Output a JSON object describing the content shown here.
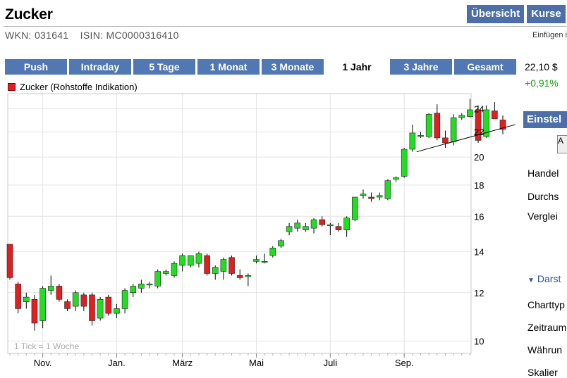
{
  "page": {
    "title": "Zucker",
    "wkn": "WKN: 031641",
    "isin": "ISIN: MC0000316410",
    "insert_link": "Einfügen i"
  },
  "topnav": [
    "Übersicht",
    "Kurse"
  ],
  "range_tabs": {
    "items": [
      "Push",
      "Intraday",
      "5 Tage",
      "1 Monat",
      "3 Monate",
      "1 Jahr",
      "3 Jahre",
      "Gesamt"
    ],
    "active": "1 Jahr"
  },
  "quote": {
    "price": "22,10 $",
    "change": "+0,91%"
  },
  "sidebar": {
    "settings_title": "Einstel",
    "button_stub": "A",
    "items": [
      "Handel",
      "Durchs",
      "Verglei"
    ],
    "section_title": "Darst",
    "section_items": [
      "Charttyp",
      "Zeitraum",
      "Währun",
      "Skalier"
    ]
  },
  "colors": {
    "up": "#22dd22",
    "down": "#e02020",
    "nav": "#4d6fa9",
    "range_tab": "#5278b4",
    "positive": "#1aa31a"
  },
  "chart_data": {
    "type": "candlestick",
    "legend": "Zucker (Rohstoffe Indikation)",
    "note": "1 Tick = 1 Woche",
    "y_ticks": [
      10,
      12,
      14,
      16,
      18,
      20,
      22,
      24
    ],
    "ylim": [
      9.7,
      25.2
    ],
    "x_ticks": [
      {
        "label": "Nov.",
        "week": 4
      },
      {
        "label": "Jan.",
        "week": 13
      },
      {
        "label": "März",
        "week": 21
      },
      {
        "label": "Mai",
        "week": 30
      },
      {
        "label": "Juli",
        "week": 39
      },
      {
        "label": "Sep.",
        "week": 48
      }
    ],
    "x_range": [
      0,
      56
    ],
    "candles": [
      {
        "o": 14.4,
        "h": 14.4,
        "l": 12.6,
        "c": 12.7
      },
      {
        "o": 12.4,
        "h": 12.5,
        "l": 11.1,
        "c": 11.3
      },
      {
        "o": 11.6,
        "h": 12.0,
        "l": 11.3,
        "c": 11.8
      },
      {
        "o": 11.7,
        "h": 11.9,
        "l": 10.4,
        "c": 10.7
      },
      {
        "o": 10.8,
        "h": 12.3,
        "l": 10.5,
        "c": 12.2
      },
      {
        "o": 12.1,
        "h": 12.8,
        "l": 11.9,
        "c": 12.3
      },
      {
        "o": 12.3,
        "h": 12.4,
        "l": 11.6,
        "c": 11.7
      },
      {
        "o": 11.6,
        "h": 11.7,
        "l": 11.2,
        "c": 11.3
      },
      {
        "o": 11.4,
        "h": 12.1,
        "l": 11.2,
        "c": 12.0
      },
      {
        "o": 11.9,
        "h": 12.0,
        "l": 11.2,
        "c": 11.4
      },
      {
        "o": 11.9,
        "h": 12.0,
        "l": 10.6,
        "c": 10.8
      },
      {
        "o": 10.9,
        "h": 11.8,
        "l": 10.8,
        "c": 11.7
      },
      {
        "o": 11.8,
        "h": 11.9,
        "l": 11.0,
        "c": 11.1
      },
      {
        "o": 11.1,
        "h": 11.5,
        "l": 10.9,
        "c": 11.3
      },
      {
        "o": 11.3,
        "h": 12.2,
        "l": 11.1,
        "c": 12.1
      },
      {
        "o": 12.0,
        "h": 12.4,
        "l": 11.8,
        "c": 12.3
      },
      {
        "o": 12.2,
        "h": 12.6,
        "l": 12.0,
        "c": 12.4
      },
      {
        "o": 12.4,
        "h": 12.5,
        "l": 12.2,
        "c": 12.4
      },
      {
        "o": 12.3,
        "h": 13.1,
        "l": 12.2,
        "c": 13.0
      },
      {
        "o": 12.9,
        "h": 13.1,
        "l": 12.8,
        "c": 13.0
      },
      {
        "o": 12.8,
        "h": 13.5,
        "l": 12.7,
        "c": 13.4
      },
      {
        "o": 13.3,
        "h": 13.9,
        "l": 13.0,
        "c": 13.8
      },
      {
        "o": 13.3,
        "h": 13.8,
        "l": 13.2,
        "c": 13.8
      },
      {
        "o": 13.4,
        "h": 14.0,
        "l": 13.2,
        "c": 13.9
      },
      {
        "o": 13.8,
        "h": 13.9,
        "l": 12.8,
        "c": 12.9
      },
      {
        "o": 12.9,
        "h": 13.3,
        "l": 12.6,
        "c": 13.2
      },
      {
        "o": 13.0,
        "h": 13.7,
        "l": 12.6,
        "c": 13.6
      },
      {
        "o": 13.7,
        "h": 13.8,
        "l": 12.8,
        "c": 12.9
      },
      {
        "o": 12.8,
        "h": 13.1,
        "l": 12.6,
        "c": 12.7
      },
      {
        "o": 12.8,
        "h": 12.9,
        "l": 12.3,
        "c": 12.8
      },
      {
        "o": 13.5,
        "h": 13.8,
        "l": 13.4,
        "c": 13.6
      },
      {
        "o": 13.5,
        "h": 13.9,
        "l": 13.4,
        "c": 13.5
      },
      {
        "o": 13.8,
        "h": 14.3,
        "l": 13.7,
        "c": 14.2
      },
      {
        "o": 14.3,
        "h": 14.7,
        "l": 14.2,
        "c": 14.6
      },
      {
        "o": 15.1,
        "h": 15.6,
        "l": 14.9,
        "c": 15.4
      },
      {
        "o": 15.3,
        "h": 15.8,
        "l": 15.1,
        "c": 15.6
      },
      {
        "o": 15.2,
        "h": 15.6,
        "l": 15.1,
        "c": 15.4
      },
      {
        "o": 15.3,
        "h": 15.9,
        "l": 15.0,
        "c": 15.8
      },
      {
        "o": 15.8,
        "h": 16.0,
        "l": 15.4,
        "c": 15.5
      },
      {
        "o": 15.5,
        "h": 15.6,
        "l": 14.9,
        "c": 15.5
      },
      {
        "o": 15.4,
        "h": 15.6,
        "l": 15.1,
        "c": 15.2
      },
      {
        "o": 15.2,
        "h": 16.0,
        "l": 14.8,
        "c": 15.9
      },
      {
        "o": 15.8,
        "h": 17.2,
        "l": 15.7,
        "c": 17.2
      },
      {
        "o": 17.3,
        "h": 17.7,
        "l": 17.1,
        "c": 17.4
      },
      {
        "o": 17.2,
        "h": 17.5,
        "l": 16.9,
        "c": 17.1
      },
      {
        "o": 17.2,
        "h": 17.5,
        "l": 17.0,
        "c": 17.3
      },
      {
        "o": 17.1,
        "h": 18.4,
        "l": 17.0,
        "c": 18.3
      },
      {
        "o": 18.4,
        "h": 18.6,
        "l": 18.2,
        "c": 18.5
      },
      {
        "o": 18.6,
        "h": 20.7,
        "l": 18.5,
        "c": 20.6
      },
      {
        "o": 20.6,
        "h": 22.6,
        "l": 20.4,
        "c": 21.9
      },
      {
        "o": 21.7,
        "h": 22.0,
        "l": 21.5,
        "c": 21.7
      },
      {
        "o": 21.6,
        "h": 23.6,
        "l": 21.5,
        "c": 23.5
      },
      {
        "o": 23.6,
        "h": 24.4,
        "l": 21.3,
        "c": 21.5
      },
      {
        "o": 21.5,
        "h": 22.1,
        "l": 20.7,
        "c": 21.1
      },
      {
        "o": 21.2,
        "h": 23.5,
        "l": 20.9,
        "c": 23.2
      },
      {
        "o": 23.2,
        "h": 23.6,
        "l": 23.0,
        "c": 23.4
      }
    ],
    "candles_tail": [
      {
        "o": 23.3,
        "h": 24.9,
        "l": 23.2,
        "c": 23.9
      },
      {
        "o": 23.9,
        "h": 24.3,
        "l": 21.1,
        "c": 21.3
      },
      {
        "o": 21.6,
        "h": 24.3,
        "l": 21.5,
        "c": 23.9
      },
      {
        "o": 23.8,
        "h": 24.6,
        "l": 23.1,
        "c": 23.1
      },
      {
        "o": 23.0,
        "h": 23.4,
        "l": 21.8,
        "c": 22.2
      }
    ],
    "trendline": [
      {
        "week": 49.5,
        "y": 20.4
      },
      {
        "week": 61.5,
        "y": 22.6
      }
    ]
  }
}
